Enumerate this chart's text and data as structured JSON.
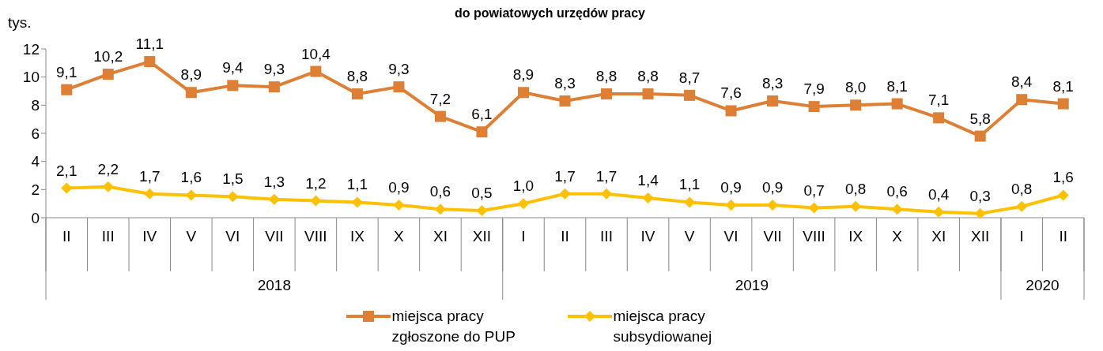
{
  "chart_data": {
    "type": "line",
    "title": "do powiatowych urzędów pracy",
    "ylabel": "tys.",
    "categories": [
      "II",
      "III",
      "IV",
      "V",
      "VI",
      "VII",
      "VIII",
      "IX",
      "X",
      "XI",
      "XII",
      "I",
      "II",
      "III",
      "IV",
      "V",
      "VI",
      "VII",
      "VIII",
      "IX",
      "X",
      "XI",
      "XII",
      "I",
      "II"
    ],
    "annotations": [
      "2018",
      "2019",
      "2020"
    ],
    "series": [
      {
        "name": "miejsca pracy zgłoszone do PUP",
        "color": "#dd7f35",
        "marker": "square",
        "values": [
          9.1,
          10.2,
          11.1,
          8.9,
          9.4,
          9.3,
          10.4,
          8.8,
          9.3,
          7.2,
          6.1,
          8.9,
          8.3,
          8.8,
          8.8,
          8.7,
          7.6,
          8.3,
          7.9,
          8.0,
          8.1,
          7.1,
          5.8,
          8.4,
          8.1
        ],
        "value_labels": [
          "9,1",
          "10,2",
          "11,1",
          "8,9",
          "9,4",
          "9,3",
          "10,4",
          "8,8",
          "9,3",
          "7,2",
          "6,1",
          "8,9",
          "8,3",
          "8,8",
          "8,8",
          "8,7",
          "7,6",
          "8,3",
          "7,9",
          "8,0",
          "8,1",
          "7,1",
          "5,8",
          "8,4",
          "8,1"
        ]
      },
      {
        "name": "miejsca pracy subsydiowanej",
        "color": "#ffc000",
        "marker": "diamond",
        "values": [
          2.1,
          2.2,
          1.7,
          1.6,
          1.5,
          1.3,
          1.2,
          1.1,
          0.9,
          0.6,
          0.5,
          1.0,
          1.7,
          1.7,
          1.4,
          1.1,
          0.9,
          0.9,
          0.7,
          0.8,
          0.6,
          0.4,
          0.3,
          0.8,
          1.6
        ],
        "value_labels": [
          "2,1",
          "2,2",
          "1,7",
          "1,6",
          "1,5",
          "1,3",
          "1,2",
          "1,1",
          "0,9",
          "0,6",
          "0,5",
          "1,0",
          "1,7",
          "1,7",
          "1,4",
          "1,1",
          "0,9",
          "0,9",
          "0,7",
          "0,8",
          "0,6",
          "0,4",
          "0,3",
          "0,8",
          "1,6"
        ]
      }
    ],
    "ylim": [
      0,
      12
    ],
    "yticks": [
      0,
      2,
      4,
      6,
      8,
      10,
      12
    ],
    "grid": false,
    "legend": "bottom",
    "line_style": "solid"
  }
}
